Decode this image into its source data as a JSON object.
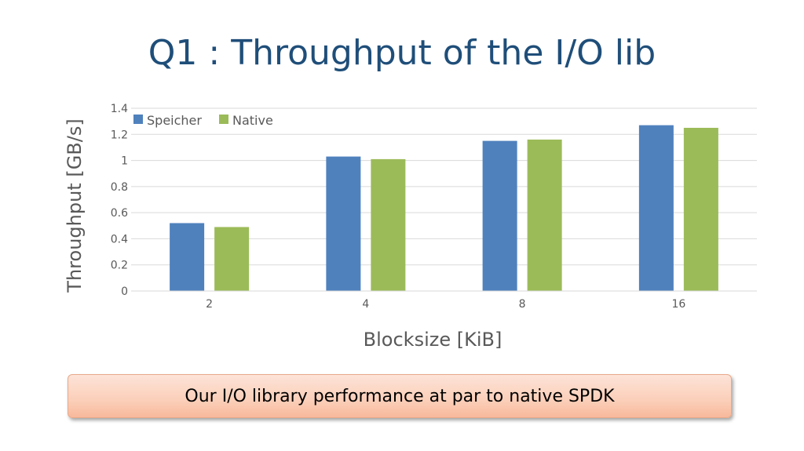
{
  "slide": {
    "title": "Q1 : Throughput of the I/O lib",
    "callout": "Our I/O library performance at par to native SPDK"
  },
  "chart_data": {
    "type": "bar",
    "categories": [
      "2",
      "4",
      "8",
      "16"
    ],
    "series": [
      {
        "name": "Speicher",
        "color": "#4f81bd",
        "values": [
          0.52,
          1.03,
          1.15,
          1.27
        ]
      },
      {
        "name": "Native",
        "color": "#9bbb59",
        "values": [
          0.49,
          1.01,
          1.16,
          1.25
        ]
      }
    ],
    "xlabel": "Blocksize [KiB]",
    "ylabel": "Throughput [GB/s]",
    "ylim": [
      0,
      1.4
    ],
    "yticks": [
      "0",
      "0.2",
      "0.4",
      "0.6",
      "0.8",
      "1",
      "1.2",
      "1.4"
    ],
    "grid": true,
    "legend_position": "top-left"
  }
}
